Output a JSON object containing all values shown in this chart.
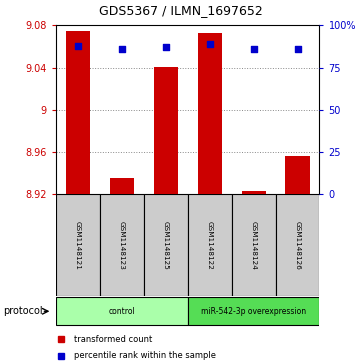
{
  "title": "GDS5367 / ILMN_1697652",
  "samples": [
    "GSM1148121",
    "GSM1148123",
    "GSM1148125",
    "GSM1148122",
    "GSM1148124",
    "GSM1148126"
  ],
  "transformed_counts": [
    9.075,
    8.935,
    9.041,
    9.073,
    8.923,
    8.956
  ],
  "percentile_ranks": [
    88,
    86,
    87,
    89,
    86,
    86
  ],
  "bar_baseline": 8.92,
  "ylim_left": [
    8.92,
    9.08
  ],
  "ylim_right": [
    0,
    100
  ],
  "yticks_left": [
    8.92,
    8.96,
    9.0,
    9.04,
    9.08
  ],
  "yticks_right": [
    0,
    25,
    50,
    75,
    100
  ],
  "ytick_labels_left": [
    "8.92",
    "8.96",
    "9",
    "9.04",
    "9.08"
  ],
  "ytick_labels_right": [
    "0",
    "25",
    "50",
    "75",
    "100%"
  ],
  "bar_color": "#cc0000",
  "scatter_color": "#0000cc",
  "grid_color": "#888888",
  "bg_color": "#ffffff",
  "groups": [
    {
      "label": "control",
      "indices": [
        0,
        1,
        2
      ],
      "color": "#aaffaa"
    },
    {
      "label": "miR-542-3p overexpression",
      "indices": [
        3,
        4,
        5
      ],
      "color": "#55dd55"
    }
  ],
  "legend_bar_label": "transformed count",
  "legend_scatter_label": "percentile rank within the sample",
  "sample_box_color": "#cccccc",
  "protocol_label": "protocol"
}
